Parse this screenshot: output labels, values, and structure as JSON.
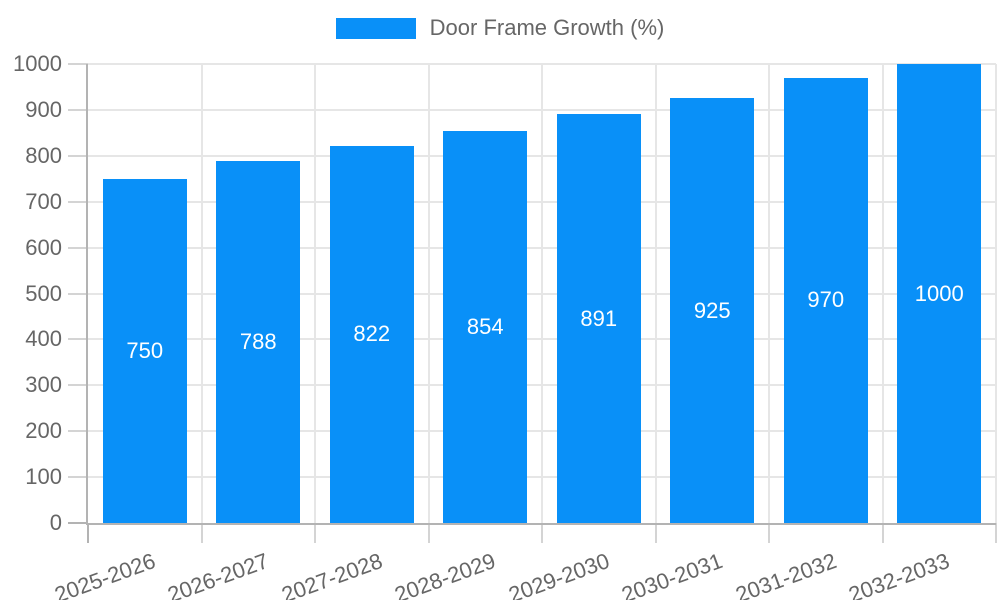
{
  "chart_data": {
    "type": "bar",
    "title": "",
    "legend_label": "Door Frame Growth (%)",
    "legend_position": "top",
    "categories": [
      "2025-2026",
      "2026-2027",
      "2027-2028",
      "2028-2029",
      "2029-2030",
      "2030-2031",
      "2031-2032",
      "2032-2033"
    ],
    "series": [
      {
        "name": "Door Frame Growth (%)",
        "values": [
          750,
          788,
          822,
          854,
          891,
          925,
          970,
          1000
        ]
      }
    ],
    "data_labels": [
      "750",
      "788",
      "822",
      "854",
      "891",
      "925",
      "970",
      "1000"
    ],
    "xlabel": "",
    "ylabel": "",
    "ylim": [
      0,
      1000
    ],
    "ystep": 100,
    "grid": "on",
    "colors": {
      "bar": "#0990f8",
      "value_label": "#ffffff",
      "tick_text": "#666666",
      "grid": "#e6e6e6",
      "axis": "#b3b3b3",
      "minor_tick": "#d4d4d4"
    }
  }
}
